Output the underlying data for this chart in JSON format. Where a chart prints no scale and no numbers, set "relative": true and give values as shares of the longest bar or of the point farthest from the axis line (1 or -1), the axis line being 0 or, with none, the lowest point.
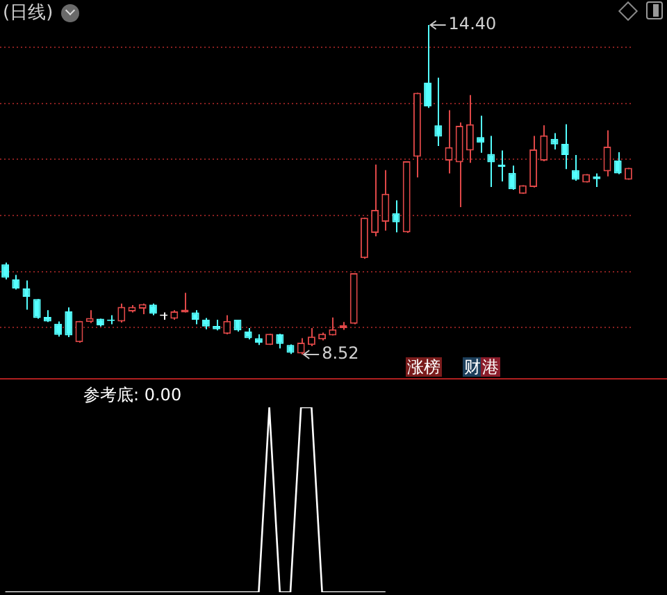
{
  "chart_data": [
    {
      "type": "candlestick",
      "title": "(日线)",
      "categories": [
        null,
        null,
        null,
        null,
        null,
        null,
        null,
        null,
        null,
        null,
        null,
        null,
        null,
        null,
        null,
        null,
        null,
        null,
        null,
        null,
        null,
        null,
        null,
        null,
        null,
        null,
        null,
        null,
        null,
        null,
        null,
        null,
        null,
        null,
        null,
        null,
        null,
        null,
        null,
        null,
        null,
        null,
        null,
        null,
        null,
        null,
        null,
        null,
        null,
        null,
        null,
        null,
        null,
        null,
        null,
        null,
        null,
        null,
        null,
        null
      ],
      "ohlc": [
        [
          10.13,
          10.16,
          9.86,
          9.89
        ],
        [
          9.86,
          9.94,
          9.68,
          9.7
        ],
        [
          9.7,
          9.84,
          9.32,
          9.55
        ],
        [
          9.51,
          9.51,
          9.16,
          9.17
        ],
        [
          9.19,
          9.31,
          9.1,
          9.11
        ],
        [
          9.07,
          9.11,
          8.84,
          8.87
        ],
        [
          9.29,
          9.36,
          8.83,
          8.86
        ],
        [
          8.74,
          9.12,
          8.73,
          9.12
        ],
        [
          9.1,
          9.31,
          9.08,
          9.17
        ],
        [
          9.16,
          9.16,
          9.02,
          9.04
        ],
        [
          9.14,
          9.22,
          9.06,
          9.12
        ],
        [
          9.11,
          9.43,
          9.09,
          9.37
        ],
        [
          9.29,
          9.4,
          9.27,
          9.37
        ],
        [
          9.34,
          9.43,
          9.24,
          9.42
        ],
        [
          9.41,
          9.43,
          9.22,
          9.25
        ],
        [
          9.21,
          9.27,
          9.14,
          9.21
        ],
        [
          9.16,
          9.31,
          9.14,
          9.29
        ],
        [
          9.27,
          9.62,
          9.27,
          9.32
        ],
        [
          9.27,
          9.31,
          9.06,
          9.14
        ],
        [
          9.14,
          9.17,
          8.97,
          9.02
        ],
        [
          9.03,
          9.14,
          8.95,
          8.97
        ],
        [
          8.89,
          9.22,
          8.88,
          9.12
        ],
        [
          9.14,
          9.14,
          8.93,
          8.95
        ],
        [
          8.93,
          8.99,
          8.79,
          8.81
        ],
        [
          8.81,
          8.88,
          8.69,
          8.73
        ],
        [
          8.69,
          8.89,
          8.69,
          8.89
        ],
        [
          8.88,
          8.89,
          8.63,
          8.71
        ],
        [
          8.69,
          8.7,
          8.53,
          8.55
        ],
        [
          8.54,
          8.81,
          8.52,
          8.73
        ],
        [
          8.69,
          8.99,
          8.67,
          8.84
        ],
        [
          8.79,
          8.91,
          8.77,
          8.89
        ],
        [
          8.86,
          9.18,
          8.86,
          8.97
        ],
        [
          8.99,
          9.1,
          8.96,
          9.04
        ],
        [
          9.07,
          9.97,
          9.06,
          9.97
        ],
        [
          10.24,
          10.96,
          10.23,
          10.96
        ],
        [
          10.69,
          11.91,
          10.63,
          11.1
        ],
        [
          10.89,
          11.81,
          10.73,
          11.39
        ],
        [
          11.04,
          11.27,
          10.7,
          10.88
        ],
        [
          10.7,
          11.97,
          10.69,
          11.97
        ],
        [
          12.05,
          13.19,
          11.68,
          13.19
        ],
        [
          13.37,
          14.4,
          12.92,
          12.95
        ],
        [
          12.61,
          13.46,
          12.24,
          12.41
        ],
        [
          11.98,
          12.88,
          11.75,
          12.22
        ],
        [
          11.95,
          12.66,
          11.15,
          12.6
        ],
        [
          12.16,
          13.15,
          11.94,
          12.63
        ],
        [
          12.4,
          12.78,
          12.12,
          12.3
        ],
        [
          12.1,
          12.42,
          11.51,
          11.95
        ],
        [
          11.91,
          12.16,
          11.61,
          11.87
        ],
        [
          11.76,
          11.89,
          11.46,
          11.47
        ],
        [
          11.39,
          11.54,
          11.39,
          11.54
        ],
        [
          11.51,
          12.42,
          11.5,
          12.18
        ],
        [
          11.98,
          12.61,
          11.97,
          12.43
        ],
        [
          12.37,
          12.47,
          12.18,
          12.27
        ],
        [
          12.28,
          12.63,
          11.83,
          12.08
        ],
        [
          11.81,
          12.08,
          11.62,
          11.64
        ],
        [
          11.59,
          11.74,
          11.59,
          11.74
        ],
        [
          11.7,
          11.75,
          11.51,
          11.65
        ],
        [
          11.79,
          12.52,
          11.7,
          12.23
        ],
        [
          11.98,
          12.13,
          11.74,
          11.75
        ],
        [
          11.64,
          11.85,
          11.64,
          11.85
        ]
      ],
      "colors": [
        "#54ffff",
        "#54ffff",
        "#54ffff",
        "#54ffff",
        "#54ffff",
        "#54ffff",
        "#54ffff",
        "#e04848",
        "#e04848",
        "#54ffff",
        "#54ffff",
        "#e04848",
        "#e04848",
        "#e04848",
        "#54ffff",
        "#ffffff",
        "#e04848",
        "#e04848",
        "#54ffff",
        "#54ffff",
        "#54ffff",
        "#e04848",
        "#54ffff",
        "#54ffff",
        "#54ffff",
        "#e04848",
        "#54ffff",
        "#54ffff",
        "#e04848",
        "#e04848",
        "#e04848",
        "#e04848",
        "#e04848",
        "#e04848",
        "#e04848",
        "#e04848",
        "#e04848",
        "#54ffff",
        "#e04848",
        "#e04848",
        "#54ffff",
        "#54ffff",
        "#e04848",
        "#e04848",
        "#e04848",
        "#54ffff",
        "#54ffff",
        "#54ffff",
        "#54ffff",
        "#e04848",
        "#e04848",
        "#e04848",
        "#54ffff",
        "#54ffff",
        "#54ffff",
        "#e04848",
        "#54ffff",
        "#e04848",
        "#54ffff",
        "#e04848"
      ],
      "yticks": [
        {
          "value": 9,
          "label": null
        },
        {
          "value": 10,
          "label": null
        },
        {
          "value": 11,
          "label": null
        },
        {
          "value": 12,
          "label": null
        },
        {
          "value": 13,
          "label": null
        },
        {
          "value": 14,
          "label": null
        }
      ],
      "grid": "y",
      "legend": false,
      "tick_labels": false,
      "annotations": [
        "14.40",
        "8.52",
        "涨榜",
        "财",
        "港"
      ]
    },
    {
      "type": "line",
      "title": "参考底: 0.00",
      "categories": [
        null,
        null,
        null,
        null,
        null,
        null,
        null,
        null,
        null,
        null,
        null,
        null,
        null,
        null,
        null,
        null,
        null,
        null,
        null,
        null,
        null,
        null,
        null,
        null,
        null,
        null,
        null,
        null,
        null,
        null,
        null,
        null,
        null,
        null,
        null,
        null,
        null,
        null,
        null,
        null,
        null,
        null,
        null,
        null,
        null,
        null,
        null,
        null,
        null,
        null,
        null,
        null,
        null,
        null,
        null,
        null,
        null,
        null,
        null,
        null
      ],
      "series": [
        {
          "color": "#ffffff",
          "values": [
            0,
            0,
            0,
            0,
            0,
            0,
            0,
            0,
            0,
            0,
            0,
            0,
            0,
            0,
            0,
            0,
            0,
            0,
            0,
            0,
            0,
            0,
            0,
            0,
            0,
            1,
            0,
            0,
            1,
            1,
            0,
            0,
            0,
            0,
            0,
            0,
            0,
            null,
            null,
            null,
            null,
            null,
            null,
            null,
            null,
            null,
            null,
            null,
            null,
            null,
            null,
            null,
            null,
            null,
            null,
            null,
            null,
            null,
            null,
            null
          ]
        }
      ],
      "relative": true,
      "legend": false,
      "tick_labels": false
    }
  ]
}
